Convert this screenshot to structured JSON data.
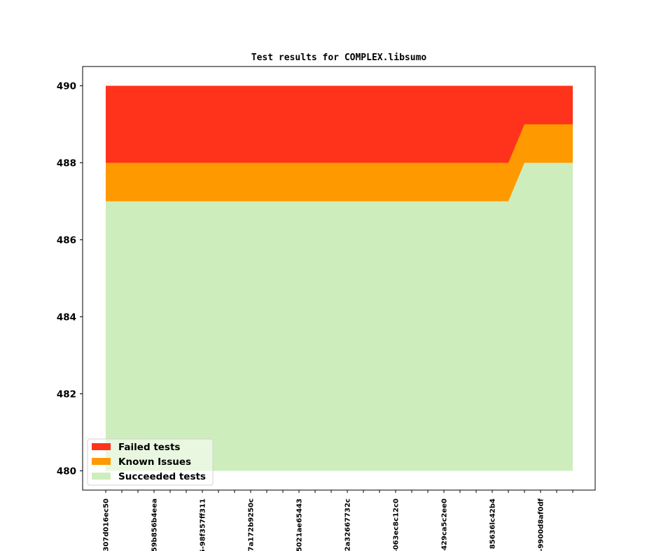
{
  "chart_data": {
    "type": "area",
    "title": "Test results for COMPLEX.libsumo",
    "xlabel": "",
    "ylabel": "",
    "ylim": [
      479.5,
      490.5
    ],
    "yticks": [
      480,
      482,
      484,
      486,
      488,
      490
    ],
    "xtick_labels": [
      "307d016ec50",
      "59b856b4eea",
      "5-98f357ff311",
      "7a172b9250c",
      "5021ae65443",
      "2a32667732c",
      "-063ec8c12c0",
      "-429ca5c2ee0",
      "85636lc42b4",
      "-9900d8af0df"
    ],
    "legend_position": "lower-left",
    "series": [
      {
        "name": "Failed tests",
        "color": "#ff331c",
        "values": [
          490,
          490,
          490,
          490,
          490,
          490,
          490,
          490,
          490,
          490,
          490,
          490,
          490,
          490,
          490,
          490,
          490,
          490,
          490,
          490,
          490,
          490,
          490,
          490,
          490,
          490,
          490,
          490,
          490,
          490
        ]
      },
      {
        "name": "Known Issues",
        "color": "#ff9900",
        "values": [
          488,
          488,
          488,
          488,
          488,
          488,
          488,
          488,
          488,
          488,
          488,
          488,
          488,
          488,
          488,
          488,
          488,
          488,
          488,
          488,
          488,
          488,
          488,
          488,
          488,
          488,
          489,
          489,
          489,
          489
        ]
      },
      {
        "name": "Succeeded tests",
        "color": "#ceedbd",
        "values": [
          487,
          487,
          487,
          487,
          487,
          487,
          487,
          487,
          487,
          487,
          487,
          487,
          487,
          487,
          487,
          487,
          487,
          487,
          487,
          487,
          487,
          487,
          487,
          487,
          487,
          487,
          488,
          488,
          488,
          488
        ]
      }
    ],
    "baseline": 480
  }
}
